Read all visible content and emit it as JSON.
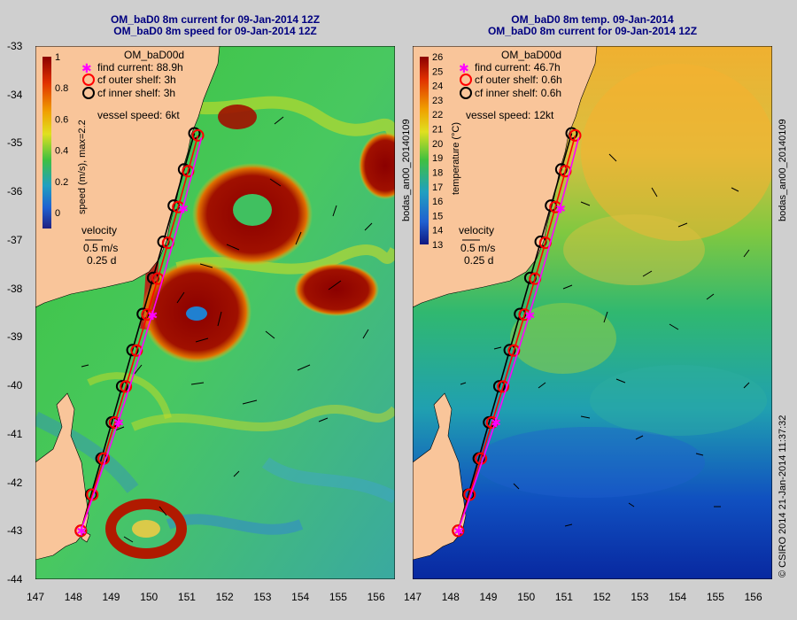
{
  "left_panel": {
    "title_line1": "OM_baD0 8m current for 09-Jan-2014 12Z",
    "title_line2": "OM_baD0 8m speed for 09-Jan-2014 12Z",
    "colorbar_label": "speed (m/s), max=2.2",
    "colorbar_ticks": [
      "1",
      "0.8",
      "0.6",
      "0.4",
      "0.2",
      "0"
    ],
    "legend_title": "OM_baD00d",
    "legend_items": [
      "find current: 88.9h",
      "cf outer shelf: 3h",
      "cf inner shelf: 3h"
    ],
    "vessel_speed": "vessel speed: 6kt",
    "velocity_label": "velocity",
    "velocity_scale": "0.5 m/s",
    "velocity_time": "0.25 d",
    "side_label": "bodas_an00_20140109"
  },
  "right_panel": {
    "title_line1": "OM_baD0 8m temp. 09-Jan-2014",
    "title_line2": "OM_baD0 8m current for 09-Jan-2014 12Z",
    "colorbar_label": "temperature (°C)",
    "colorbar_ticks": [
      "26",
      "25",
      "24",
      "23",
      "22",
      "21",
      "20",
      "19",
      "18",
      "17",
      "16",
      "15",
      "14",
      "13"
    ],
    "legend_title": "OM_baD00d",
    "legend_items": [
      "find current: 46.7h",
      "cf outer shelf: 0.6h",
      "cf inner shelf: 0.6h"
    ],
    "vessel_speed": "vessel speed: 12kt",
    "velocity_label": "velocity",
    "velocity_scale": "0.5 m/s",
    "velocity_time": "0.25 d",
    "side_label": "bodas_an00_20140109"
  },
  "x_ticks": [
    "147",
    "148",
    "149",
    "150",
    "151",
    "152",
    "153",
    "154",
    "155",
    "156"
  ],
  "y_ticks": [
    "-33",
    "-34",
    "-35",
    "-36",
    "-37",
    "-38",
    "-39",
    "-40",
    "-41",
    "-42",
    "-43",
    "-44"
  ],
  "footer_credit": "© CSIRO 2014  21-Jan-2014 11:37:32",
  "colors": {
    "land": "#f9c59a",
    "title": "#000080",
    "find_current": "#ff00ff",
    "outer_shelf": "#ff0000",
    "inner_shelf": "#000000"
  },
  "route": {
    "lon_lat_start": [
      148.2,
      -43.0
    ],
    "lon_lat_end": [
      151.2,
      -34.8
    ]
  }
}
